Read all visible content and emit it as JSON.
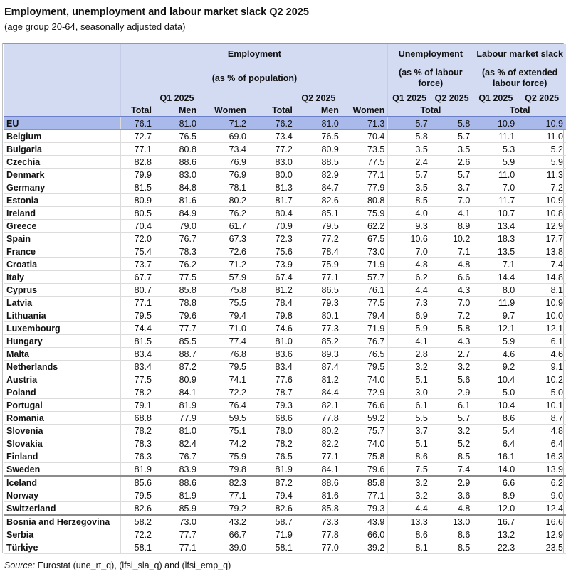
{
  "title": "Employment, unemployment and labour market slack Q2 2025",
  "subtitle": "(age group 20-64, seasonally adjusted data)",
  "header": {
    "employment": "Employment",
    "employment_unit": "(as % of population)",
    "unemployment": "Unemployment",
    "unemployment_unit": "(as % of labour force)",
    "slack": "Labour market slack",
    "slack_unit": "(as % of extended labour force)",
    "q1": "Q1 2025",
    "q2": "Q2 2025",
    "total": "Total",
    "men": "Men",
    "women": "Women"
  },
  "rows": [
    {
      "country": "EU",
      "values": [
        "76.1",
        "81.0",
        "71.2",
        "76.2",
        "81.0",
        "71.3",
        "5.7",
        "5.8",
        "10.9",
        "10.9"
      ]
    },
    {
      "country": "Belgium",
      "values": [
        "72.7",
        "76.5",
        "69.0",
        "73.4",
        "76.5",
        "70.4",
        "5.8",
        "5.7",
        "11.1",
        "11.0"
      ]
    },
    {
      "country": "Bulgaria",
      "values": [
        "77.1",
        "80.8",
        "73.4",
        "77.2",
        "80.9",
        "73.5",
        "3.5",
        "3.5",
        "5.3",
        "5.2"
      ]
    },
    {
      "country": "Czechia",
      "values": [
        "82.8",
        "88.6",
        "76.9",
        "83.0",
        "88.5",
        "77.5",
        "2.4",
        "2.6",
        "5.9",
        "5.9"
      ]
    },
    {
      "country": "Denmark",
      "values": [
        "79.9",
        "83.0",
        "76.9",
        "80.0",
        "82.9",
        "77.1",
        "5.7",
        "5.7",
        "11.0",
        "11.3"
      ]
    },
    {
      "country": "Germany",
      "values": [
        "81.5",
        "84.8",
        "78.1",
        "81.3",
        "84.7",
        "77.9",
        "3.5",
        "3.7",
        "7.0",
        "7.2"
      ]
    },
    {
      "country": "Estonia",
      "values": [
        "80.9",
        "81.6",
        "80.2",
        "81.7",
        "82.6",
        "80.8",
        "8.5",
        "7.0",
        "11.7",
        "10.9"
      ]
    },
    {
      "country": "Ireland",
      "values": [
        "80.5",
        "84.9",
        "76.2",
        "80.4",
        "85.1",
        "75.9",
        "4.0",
        "4.1",
        "10.7",
        "10.8"
      ]
    },
    {
      "country": "Greece",
      "values": [
        "70.4",
        "79.0",
        "61.7",
        "70.9",
        "79.5",
        "62.2",
        "9.3",
        "8.9",
        "13.4",
        "12.9"
      ]
    },
    {
      "country": "Spain",
      "values": [
        "72.0",
        "76.7",
        "67.3",
        "72.3",
        "77.2",
        "67.5",
        "10.6",
        "10.2",
        "18.3",
        "17.7"
      ]
    },
    {
      "country": "France",
      "values": [
        "75.4",
        "78.3",
        "72.6",
        "75.6",
        "78.4",
        "73.0",
        "7.0",
        "7.1",
        "13.5",
        "13.8"
      ]
    },
    {
      "country": "Croatia",
      "values": [
        "73.7",
        "76.2",
        "71.2",
        "73.9",
        "75.9",
        "71.9",
        "4.8",
        "4.8",
        "7.1",
        "7.4"
      ]
    },
    {
      "country": "Italy",
      "values": [
        "67.7",
        "77.5",
        "57.9",
        "67.4",
        "77.1",
        "57.7",
        "6.2",
        "6.6",
        "14.4",
        "14.8"
      ]
    },
    {
      "country": "Cyprus",
      "values": [
        "80.7",
        "85.8",
        "75.8",
        "81.2",
        "86.5",
        "76.1",
        "4.4",
        "4.3",
        "8.0",
        "8.1"
      ]
    },
    {
      "country": "Latvia",
      "values": [
        "77.1",
        "78.8",
        "75.5",
        "78.4",
        "79.3",
        "77.5",
        "7.3",
        "7.0",
        "11.9",
        "10.9"
      ]
    },
    {
      "country": "Lithuania",
      "values": [
        "79.5",
        "79.6",
        "79.4",
        "79.8",
        "80.1",
        "79.4",
        "6.9",
        "7.2",
        "9.7",
        "10.0"
      ]
    },
    {
      "country": "Luxembourg",
      "values": [
        "74.4",
        "77.7",
        "71.0",
        "74.6",
        "77.3",
        "71.9",
        "5.9",
        "5.8",
        "12.1",
        "12.1"
      ]
    },
    {
      "country": "Hungary",
      "values": [
        "81.5",
        "85.5",
        "77.4",
        "81.0",
        "85.2",
        "76.7",
        "4.1",
        "4.3",
        "5.9",
        "6.1"
      ]
    },
    {
      "country": "Malta",
      "values": [
        "83.4",
        "88.7",
        "76.8",
        "83.6",
        "89.3",
        "76.5",
        "2.8",
        "2.7",
        "4.6",
        "4.6"
      ]
    },
    {
      "country": "Netherlands",
      "values": [
        "83.4",
        "87.2",
        "79.5",
        "83.4",
        "87.4",
        "79.5",
        "3.2",
        "3.2",
        "9.2",
        "9.1"
      ]
    },
    {
      "country": "Austria",
      "values": [
        "77.5",
        "80.9",
        "74.1",
        "77.6",
        "81.2",
        "74.0",
        "5.1",
        "5.6",
        "10.4",
        "10.2"
      ]
    },
    {
      "country": "Poland",
      "values": [
        "78.2",
        "84.1",
        "72.2",
        "78.7",
        "84.4",
        "72.9",
        "3.0",
        "2.9",
        "5.0",
        "5.0"
      ]
    },
    {
      "country": "Portugal",
      "values": [
        "79.1",
        "81.9",
        "76.4",
        "79.3",
        "82.1",
        "76.6",
        "6.1",
        "6.1",
        "10.4",
        "10.1"
      ]
    },
    {
      "country": "Romania",
      "values": [
        "68.8",
        "77.9",
        "59.5",
        "68.6",
        "77.8",
        "59.2",
        "5.5",
        "5.7",
        "8.6",
        "8.7"
      ]
    },
    {
      "country": "Slovenia",
      "values": [
        "78.2",
        "81.0",
        "75.1",
        "78.0",
        "80.2",
        "75.7",
        "3.7",
        "3.2",
        "5.4",
        "4.8"
      ]
    },
    {
      "country": "Slovakia",
      "values": [
        "78.3",
        "82.4",
        "74.2",
        "78.2",
        "82.2",
        "74.0",
        "5.1",
        "5.2",
        "6.4",
        "6.4"
      ]
    },
    {
      "country": "Finland",
      "values": [
        "76.3",
        "76.7",
        "75.9",
        "76.5",
        "77.1",
        "75.8",
        "8.6",
        "8.5",
        "16.1",
        "16.3"
      ]
    },
    {
      "country": "Sweden",
      "values": [
        "81.9",
        "83.9",
        "79.8",
        "81.9",
        "84.1",
        "79.6",
        "7.5",
        "7.4",
        "14.0",
        "13.9"
      ]
    },
    {
      "country": "Iceland",
      "values": [
        "85.6",
        "88.6",
        "82.3",
        "87.2",
        "88.6",
        "85.8",
        "3.2",
        "2.9",
        "6.6",
        "6.2"
      ]
    },
    {
      "country": "Norway",
      "values": [
        "79.5",
        "81.9",
        "77.1",
        "79.4",
        "81.6",
        "77.1",
        "3.2",
        "3.6",
        "8.9",
        "9.0"
      ]
    },
    {
      "country": "Switzerland",
      "values": [
        "82.6",
        "85.9",
        "79.2",
        "82.6",
        "85.8",
        "79.3",
        "4.4",
        "4.8",
        "12.0",
        "12.4"
      ]
    },
    {
      "country": "Bosnia and Herzegovina",
      "values": [
        "58.2",
        "73.0",
        "43.2",
        "58.7",
        "73.3",
        "43.9",
        "13.3",
        "13.0",
        "16.7",
        "16.6"
      ]
    },
    {
      "country": "Serbia",
      "values": [
        "72.2",
        "77.7",
        "66.7",
        "71.9",
        "77.8",
        "66.0",
        "8.6",
        "8.6",
        "13.2",
        "12.9"
      ]
    },
    {
      "country": "Türkiye",
      "values": [
        "58.1",
        "77.1",
        "39.0",
        "58.1",
        "77.0",
        "39.2",
        "8.1",
        "8.5",
        "22.3",
        "23.5"
      ]
    }
  ],
  "group_separators_after": [
    "Sweden",
    "Switzerland"
  ],
  "source_label": "Source:",
  "source_text": "Eurostat (une_rt_q), (lfsi_sla_q) and (lfsi_emp_q)",
  "colors": {
    "header_bg": "#d3dbf3",
    "eu_row_bg": "#a9b9ea"
  }
}
